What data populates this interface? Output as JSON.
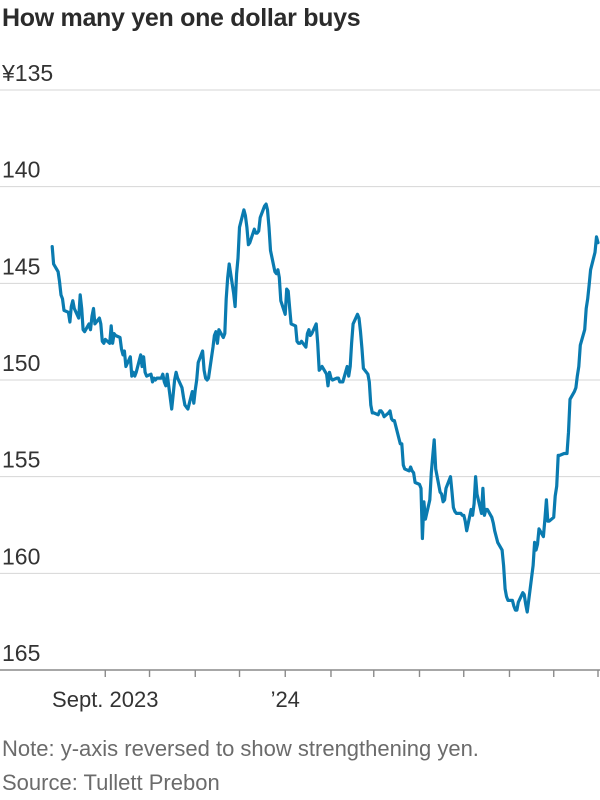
{
  "chart_data": {
    "type": "line",
    "title": "How many yen one dollar buys",
    "y_axis_reversed": true,
    "ylim": [
      135,
      165
    ],
    "y_ticks": [
      135,
      140,
      145,
      150,
      155,
      160,
      165
    ],
    "y_tick_labels": [
      "¥135",
      "140",
      "145",
      "150",
      "155",
      "160",
      "165"
    ],
    "x_range": [
      "2023-07-27",
      "2024-07-31"
    ],
    "x_labels": [
      {
        "date": "2023-09-01",
        "label": "Sept. 2023"
      },
      {
        "date": "2024-01-01",
        "label": "’24"
      }
    ],
    "x_minor_ticks": [
      "2023-09-01",
      "2023-10-01",
      "2023-11-01",
      "2023-12-01",
      "2024-01-01",
      "2024-02-01",
      "2024-03-01",
      "2024-04-01",
      "2024-05-01",
      "2024-06-01",
      "2024-07-01",
      "2024-07-31"
    ],
    "grid": "horizontal",
    "legend": "none",
    "color": "#0a7bb0",
    "series": [
      {
        "name": "",
        "values": [
          [
            "2023-07-27",
            143.1
          ],
          [
            "2023-07-28",
            144.0
          ],
          [
            "2023-07-31",
            144.4
          ],
          [
            "2023-08-01",
            144.9
          ],
          [
            "2023-08-02",
            145.6
          ],
          [
            "2023-08-03",
            145.8
          ],
          [
            "2023-08-04",
            146.4
          ],
          [
            "2023-08-07",
            146.5
          ],
          [
            "2023-08-08",
            147.0
          ],
          [
            "2023-08-09",
            146.2
          ],
          [
            "2023-08-10",
            145.9
          ],
          [
            "2023-08-11",
            146.3
          ],
          [
            "2023-08-14",
            146.8
          ],
          [
            "2023-08-15",
            145.6
          ],
          [
            "2023-08-16",
            146.3
          ],
          [
            "2023-08-17",
            147.4
          ],
          [
            "2023-08-18",
            147.5
          ],
          [
            "2023-08-21",
            147.1
          ],
          [
            "2023-08-22",
            147.4
          ],
          [
            "2023-08-23",
            146.7
          ],
          [
            "2023-08-24",
            146.3
          ],
          [
            "2023-08-25",
            147.1
          ],
          [
            "2023-08-28",
            146.8
          ],
          [
            "2023-08-29",
            147.1
          ],
          [
            "2023-08-30",
            148.0
          ],
          [
            "2023-08-31",
            148.1
          ],
          [
            "2023-09-01",
            147.9
          ],
          [
            "2023-09-04",
            148.1
          ],
          [
            "2023-09-05",
            147.2
          ],
          [
            "2023-09-06",
            148.1
          ],
          [
            "2023-09-07",
            147.6
          ],
          [
            "2023-09-08",
            147.7
          ],
          [
            "2023-09-11",
            147.8
          ],
          [
            "2023-09-12",
            148.4
          ],
          [
            "2023-09-13",
            148.7
          ],
          [
            "2023-09-14",
            148.5
          ],
          [
            "2023-09-15",
            149.3
          ],
          [
            "2023-09-18",
            148.8
          ],
          [
            "2023-09-19",
            149.8
          ],
          [
            "2023-09-20",
            149.6
          ],
          [
            "2023-09-21",
            149.8
          ],
          [
            "2023-09-22",
            149.6
          ],
          [
            "2023-09-25",
            148.7
          ],
          [
            "2023-09-26",
            149.3
          ],
          [
            "2023-09-27",
            148.8
          ],
          [
            "2023-09-28",
            149.6
          ],
          [
            "2023-09-29",
            149.8
          ],
          [
            "2023-10-02",
            149.7
          ],
          [
            "2023-10-03",
            150.1
          ],
          [
            "2023-10-04",
            149.9
          ],
          [
            "2023-10-05",
            150.0
          ],
          [
            "2023-10-06",
            149.9
          ],
          [
            "2023-10-09",
            149.9
          ],
          [
            "2023-10-10",
            149.7
          ],
          [
            "2023-10-11",
            150.1
          ],
          [
            "2023-10-12",
            150.3
          ],
          [
            "2023-10-13",
            149.7
          ],
          [
            "2023-10-16",
            151.5
          ],
          [
            "2023-10-17",
            150.8
          ],
          [
            "2023-10-18",
            150.0
          ],
          [
            "2023-10-19",
            149.6
          ],
          [
            "2023-10-20",
            149.9
          ],
          [
            "2023-10-23",
            150.4
          ],
          [
            "2023-10-24",
            150.9
          ],
          [
            "2023-10-25",
            151.3
          ],
          [
            "2023-10-26",
            151.4
          ],
          [
            "2023-10-27",
            151.5
          ],
          [
            "2023-10-30",
            150.6
          ],
          [
            "2023-10-31",
            151.2
          ],
          [
            "2023-11-01",
            150.5
          ],
          [
            "2023-11-02",
            150.0
          ],
          [
            "2023-11-03",
            149.1
          ],
          [
            "2023-11-06",
            148.5
          ],
          [
            "2023-11-07",
            149.5
          ],
          [
            "2023-11-08",
            149.9
          ],
          [
            "2023-11-09",
            150.0
          ],
          [
            "2023-11-10",
            149.9
          ],
          [
            "2023-11-13",
            148.3
          ],
          [
            "2023-11-14",
            147.7
          ],
          [
            "2023-11-15",
            147.5
          ],
          [
            "2023-11-16",
            148.1
          ],
          [
            "2023-11-17",
            147.4
          ],
          [
            "2023-11-20",
            147.8
          ],
          [
            "2023-11-21",
            147.6
          ],
          [
            "2023-11-22",
            145.8
          ],
          [
            "2023-11-23",
            144.7
          ],
          [
            "2023-11-24",
            144.0
          ],
          [
            "2023-11-27",
            145.5
          ],
          [
            "2023-11-28",
            146.2
          ],
          [
            "2023-11-29",
            144.5
          ],
          [
            "2023-11-30",
            143.7
          ],
          [
            "2023-12-01",
            142.1
          ],
          [
            "2023-12-04",
            141.2
          ],
          [
            "2023-12-05",
            141.5
          ],
          [
            "2023-12-06",
            142.1
          ],
          [
            "2023-12-07",
            143.0
          ],
          [
            "2023-12-08",
            142.9
          ],
          [
            "2023-12-11",
            142.2
          ],
          [
            "2023-12-12",
            142.4
          ],
          [
            "2023-12-13",
            142.4
          ],
          [
            "2023-12-14",
            142.3
          ],
          [
            "2023-12-15",
            141.6
          ],
          [
            "2023-12-18",
            141.0
          ],
          [
            "2023-12-19",
            140.9
          ],
          [
            "2023-12-20",
            141.2
          ],
          [
            "2023-12-21",
            142.1
          ],
          [
            "2023-12-22",
            143.3
          ],
          [
            "2023-12-25",
            144.4
          ],
          [
            "2023-12-26",
            144.5
          ],
          [
            "2023-12-27",
            144.3
          ],
          [
            "2023-12-28",
            144.7
          ],
          [
            "2023-12-29",
            145.9
          ],
          [
            "2024-01-01",
            146.6
          ],
          [
            "2024-01-02",
            145.3
          ],
          [
            "2024-01-03",
            145.4
          ],
          [
            "2024-01-04",
            146.3
          ],
          [
            "2024-01-05",
            147.1
          ],
          [
            "2024-01-08",
            147.2
          ],
          [
            "2024-01-09",
            148.0
          ],
          [
            "2024-01-10",
            148.1
          ],
          [
            "2024-01-11",
            148.1
          ],
          [
            "2024-01-12",
            148.0
          ],
          [
            "2024-01-15",
            148.3
          ],
          [
            "2024-01-16",
            147.6
          ],
          [
            "2024-01-17",
            147.4
          ],
          [
            "2024-01-18",
            147.7
          ],
          [
            "2024-01-19",
            147.6
          ],
          [
            "2024-01-22",
            147.1
          ],
          [
            "2024-01-23",
            148.1
          ],
          [
            "2024-01-24",
            149.5
          ],
          [
            "2024-01-25",
            149.4
          ],
          [
            "2024-01-26",
            149.3
          ],
          [
            "2024-01-29",
            149.7
          ],
          [
            "2024-01-30",
            150.3
          ],
          [
            "2024-01-31",
            149.6
          ],
          [
            "2024-02-01",
            149.9
          ],
          [
            "2024-02-02",
            150.0
          ],
          [
            "2024-02-05",
            149.9
          ],
          [
            "2024-02-06",
            149.9
          ],
          [
            "2024-02-07",
            150.1
          ],
          [
            "2024-02-08",
            150.1
          ],
          [
            "2024-02-09",
            150.1
          ],
          [
            "2024-02-12",
            149.3
          ],
          [
            "2024-02-13",
            149.8
          ],
          [
            "2024-02-14",
            149.3
          ],
          [
            "2024-02-15",
            148.1
          ],
          [
            "2024-02-16",
            147.1
          ],
          [
            "2024-02-19",
            146.6
          ],
          [
            "2024-02-20",
            146.8
          ],
          [
            "2024-02-21",
            147.5
          ],
          [
            "2024-02-22",
            148.4
          ],
          [
            "2024-02-23",
            149.4
          ],
          [
            "2024-02-26",
            149.7
          ],
          [
            "2024-02-27",
            150.1
          ],
          [
            "2024-02-28",
            151.3
          ],
          [
            "2024-02-29",
            151.7
          ],
          [
            "2024-03-01",
            151.7
          ],
          [
            "2024-03-04",
            151.8
          ],
          [
            "2024-03-05",
            151.6
          ],
          [
            "2024-03-06",
            151.6
          ],
          [
            "2024-03-07",
            151.7
          ],
          [
            "2024-03-08",
            151.9
          ],
          [
            "2024-03-11",
            151.7
          ],
          [
            "2024-03-12",
            151.6
          ],
          [
            "2024-03-13",
            152.0
          ],
          [
            "2024-03-14",
            152.1
          ],
          [
            "2024-03-15",
            152.1
          ],
          [
            "2024-03-18",
            153.0
          ],
          [
            "2024-03-19",
            153.3
          ],
          [
            "2024-03-20",
            153.3
          ],
          [
            "2024-03-21",
            154.4
          ],
          [
            "2024-03-22",
            154.6
          ],
          [
            "2024-03-25",
            154.7
          ],
          [
            "2024-03-26",
            154.5
          ],
          [
            "2024-03-27",
            154.7
          ],
          [
            "2024-03-28",
            154.8
          ],
          [
            "2024-03-29",
            155.3
          ],
          [
            "2024-04-01",
            155.4
          ],
          [
            "2024-04-02",
            155.6
          ],
          [
            "2024-04-03",
            158.2
          ],
          [
            "2024-04-04",
            156.3
          ],
          [
            "2024-04-05",
            157.2
          ],
          [
            "2024-04-08",
            156.2
          ],
          [
            "2024-04-09",
            154.8
          ],
          [
            "2024-04-10",
            153.9
          ],
          [
            "2024-04-11",
            153.1
          ],
          [
            "2024-04-12",
            154.6
          ],
          [
            "2024-04-15",
            155.8
          ],
          [
            "2024-04-16",
            155.9
          ],
          [
            "2024-04-17",
            156.3
          ],
          [
            "2024-04-18",
            156.2
          ],
          [
            "2024-04-19",
            155.6
          ],
          [
            "2024-04-22",
            155.0
          ],
          [
            "2024-04-23",
            155.8
          ],
          [
            "2024-04-24",
            156.6
          ],
          [
            "2024-04-25",
            156.8
          ],
          [
            "2024-04-26",
            156.9
          ],
          [
            "2024-04-29",
            156.9
          ],
          [
            "2024-04-30",
            157.0
          ],
          [
            "2024-05-01",
            157.0
          ],
          [
            "2024-05-02",
            157.3
          ],
          [
            "2024-05-03",
            157.8
          ],
          [
            "2024-05-06",
            156.7
          ],
          [
            "2024-05-07",
            157.0
          ],
          [
            "2024-05-08",
            156.4
          ],
          [
            "2024-05-09",
            155.0
          ],
          [
            "2024-05-10",
            155.9
          ],
          [
            "2024-05-13",
            156.9
          ],
          [
            "2024-05-14",
            155.6
          ],
          [
            "2024-05-15",
            157.0
          ],
          [
            "2024-05-16",
            156.7
          ],
          [
            "2024-05-17",
            156.7
          ],
          [
            "2024-05-20",
            157.1
          ],
          [
            "2024-05-21",
            157.4
          ],
          [
            "2024-05-22",
            157.8
          ],
          [
            "2024-05-23",
            158.1
          ],
          [
            "2024-05-24",
            158.4
          ],
          [
            "2024-05-27",
            158.8
          ],
          [
            "2024-05-28",
            159.6
          ],
          [
            "2024-05-29",
            160.8
          ],
          [
            "2024-05-30",
            161.2
          ],
          [
            "2024-05-31",
            161.4
          ],
          [
            "2024-06-03",
            161.4
          ],
          [
            "2024-06-04",
            161.7
          ],
          [
            "2024-06-05",
            161.9
          ],
          [
            "2024-06-06",
            161.9
          ],
          [
            "2024-06-07",
            161.5
          ],
          [
            "2024-06-10",
            161.0
          ],
          [
            "2024-06-11",
            161.1
          ],
          [
            "2024-06-12",
            161.6
          ],
          [
            "2024-06-13",
            162.0
          ],
          [
            "2024-06-14",
            161.4
          ],
          [
            "2024-06-17",
            159.6
          ],
          [
            "2024-06-18",
            158.4
          ],
          [
            "2024-06-19",
            158.8
          ],
          [
            "2024-06-20",
            158.5
          ],
          [
            "2024-06-21",
            157.7
          ],
          [
            "2024-06-24",
            158.1
          ],
          [
            "2024-06-25",
            157.2
          ],
          [
            "2024-06-26",
            156.2
          ],
          [
            "2024-06-27",
            157.3
          ],
          [
            "2024-06-28",
            157.3
          ],
          [
            "2024-07-01",
            157.1
          ],
          [
            "2024-07-02",
            156.0
          ],
          [
            "2024-07-03",
            155.5
          ],
          [
            "2024-07-04",
            153.9
          ],
          [
            "2024-07-05",
            153.9
          ],
          [
            "2024-07-08",
            153.8
          ],
          [
            "2024-07-09",
            153.8
          ],
          [
            "2024-07-10",
            153.8
          ],
          [
            "2024-07-11",
            152.7
          ],
          [
            "2024-07-12",
            151.0
          ],
          [
            "2024-07-15",
            150.6
          ],
          [
            "2024-07-16",
            150.4
          ],
          [
            "2024-07-17",
            149.8
          ],
          [
            "2024-07-18",
            149.3
          ],
          [
            "2024-07-19",
            148.2
          ],
          [
            "2024-07-22",
            147.4
          ],
          [
            "2024-07-23",
            146.3
          ],
          [
            "2024-07-24",
            145.8
          ],
          [
            "2024-07-25",
            145.1
          ],
          [
            "2024-07-26",
            144.3
          ],
          [
            "2024-07-29",
            143.4
          ],
          [
            "2024-07-30",
            142.6
          ],
          [
            "2024-07-31",
            142.9
          ]
        ]
      }
    ]
  },
  "notes": {
    "note": "Note: y-axis reversed to show strengthening yen.",
    "source": "Source: Tullett Prebon"
  }
}
